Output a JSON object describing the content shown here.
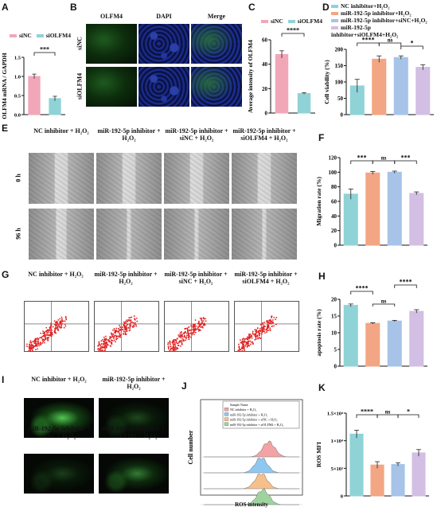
{
  "panel_labels": [
    "A",
    "B",
    "C",
    "D",
    "E",
    "F",
    "G",
    "H",
    "I",
    "J",
    "K"
  ],
  "groups4": [
    "NC inhibitor + H₂O₂",
    "miR-192-5p inhibitor + H₂O₂",
    "miR-192-5p inhibitor + siNC + H₂O₂",
    "miR-192-5p inhibitor + siOLFM4 + H₂O₂"
  ],
  "legend4": [
    "NC inhibitor+H₂O₂",
    "miR-192-5p inhibitor+H₂O₂",
    "miR-192-5p inhibitor+siNC+H₂O₂",
    "miR-192-5p inhibitor+siOLFM4+H₂O₂"
  ],
  "colors": {
    "pink": "#f2a7b9",
    "teal": "#8fd3d6",
    "salmon": "#f2a683",
    "blue": "#a7c3e8",
    "lavender": "#d2bfe3"
  },
  "panelA": {
    "legend": [
      "siNC",
      "siOLFM4"
    ],
    "ylabel": "OLFM4 mRNA / GAPDH",
    "sig": "***"
  },
  "panelB": {
    "cols": [
      "OLFM4",
      "DAPI",
      "Merge"
    ],
    "rows": [
      "siNC",
      "siOLFM4"
    ]
  },
  "panelC": {
    "legend": [
      "siNC",
      "siOLFM4"
    ],
    "ylabel": "Average intensity of OLFM4",
    "sig": "****"
  },
  "panelD": {
    "ylabel": "Cell viability (%)",
    "sigs": [
      "****",
      "ns",
      "*"
    ]
  },
  "panelE": {
    "rows": [
      "0 h",
      "96 h"
    ]
  },
  "panelF": {
    "ylabel": "Migration rate (%)",
    "sigs": [
      "***",
      "ns",
      "***"
    ]
  },
  "panelH": {
    "ylabel": "apoptosis rate (%)",
    "sigs": [
      "****",
      "ns",
      "****"
    ]
  },
  "panelJ": {
    "ylabel": "Cell number",
    "xlabel": "ROS intensity",
    "legend": [
      "Sample Name",
      "NC inhibitor + H₂O₂",
      "miR-192-5p inhibitor + H₂O₂",
      "miR-192-5p inhibitor + siNC + H₂O₂",
      "miR-192-5p inhibitor + siOLFM4 + H₂O₂"
    ]
  },
  "panelK": {
    "ylabel": "ROS MFI",
    "sigs": [
      "****",
      "ns",
      "*"
    ]
  },
  "chart_data": [
    {
      "id": "A",
      "type": "bar",
      "categories": [
        "siNC",
        "siOLFM4"
      ],
      "values": [
        1.0,
        0.42
      ],
      "errors": [
        0.06,
        0.06
      ],
      "ylim": [
        0,
        1.5
      ],
      "yticks": [
        "0.0",
        "0.5",
        "1.0",
        "1.5"
      ],
      "ylabel": "OLFM4 mRNA / GAPDH"
    },
    {
      "id": "C",
      "type": "bar",
      "categories": [
        "siNC",
        "siOLFM4"
      ],
      "values": [
        48,
        16
      ],
      "errors": [
        3,
        0.6
      ],
      "ylim": [
        0,
        60
      ],
      "yticks": [
        "0",
        "20",
        "40",
        "60"
      ],
      "ylabel": "Average intensity of OLFM4"
    },
    {
      "id": "D",
      "type": "bar",
      "categories": [
        "NC inhibitor+H₂O₂",
        "miR-192-5p inhibitor+H₂O₂",
        "miR-192-5p inhibitor+siNC+H₂O₂",
        "miR-192-5p inhibitor+siOLFM4+H₂O₂"
      ],
      "values": [
        88,
        170,
        175,
        145
      ],
      "errors": [
        20,
        10,
        5,
        8
      ],
      "ylim": [
        0,
        200
      ],
      "yticks": [
        "0",
        "50",
        "100",
        "150",
        "200"
      ],
      "ylabel": "Cell viability (%)"
    },
    {
      "id": "F",
      "type": "bar",
      "categories": [
        "NC inhibitor+H₂O₂",
        "miR-192-5p inhibitor+H₂O₂",
        "miR-192-5p inhibitor+siNC+H₂O₂",
        "miR-192-5p inhibitor+siOLFM4+H₂O₂"
      ],
      "values": [
        70,
        99,
        100,
        71
      ],
      "errors": [
        7,
        2,
        1.5,
        2
      ],
      "ylim": [
        0,
        120
      ],
      "yticks": [
        "0",
        "20",
        "40",
        "60",
        "80",
        "100",
        "120"
      ],
      "ylabel": "Migration rate (%)"
    },
    {
      "id": "H",
      "type": "bar",
      "categories": [
        "NC inhibitor+H₂O₂",
        "miR-192-5p inhibitor+H₂O₂",
        "miR-192-5p inhibitor+siNC+H₂O₂",
        "miR-192-5p inhibitor+siOLFM4+H₂O₂"
      ],
      "values": [
        18.2,
        12.8,
        13.5,
        16.4
      ],
      "errors": [
        0.4,
        0.2,
        0.2,
        0.5
      ],
      "ylim": [
        0,
        20
      ],
      "yticks": [
        "0",
        "5",
        "10",
        "15",
        "20"
      ],
      "ylabel": "apoptosis rate (%)"
    },
    {
      "id": "K",
      "type": "bar",
      "categories": [
        "NC inhibitor+H₂O₂",
        "miR-192-5p inhibitor+H₂O₂",
        "miR-192-5p inhibitor+siNC+H₂O₂",
        "miR-192-5p inhibitor+siOLFM4+H₂O₂"
      ],
      "values": [
        11200,
        5600,
        5700,
        7800
      ],
      "errors": [
        700,
        600,
        300,
        600
      ],
      "ylim": [
        0,
        15000
      ],
      "yticks": [
        "0",
        "5×10³",
        "1×10⁴",
        "1.5×10⁴"
      ],
      "ylabel": "ROS MFI"
    }
  ]
}
